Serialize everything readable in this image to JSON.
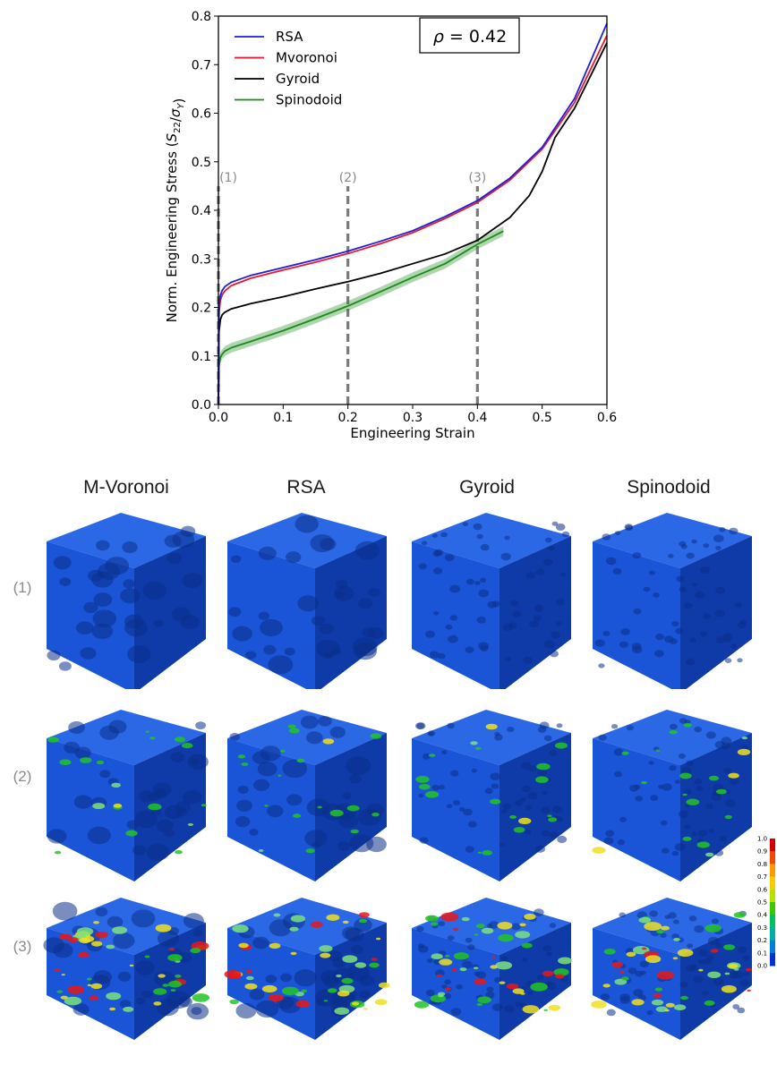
{
  "chart_data": {
    "type": "line",
    "xlabel": "Engineering Strain",
    "ylabel": "Norm. Engineering Stress (S22/σY)",
    "ylabel_parts": {
      "prefix": "Norm. Engineering Stress (",
      "s": "S",
      "s_sub": "22",
      "sigma": "σ",
      "sigma_sub": "Y",
      "suffix": ")"
    },
    "xlim": [
      0.0,
      0.6
    ],
    "ylim": [
      0.0,
      0.8
    ],
    "xticks": [
      "0.0",
      "0.1",
      "0.2",
      "0.3",
      "0.4",
      "0.5",
      "0.6"
    ],
    "yticks": [
      "0.0",
      "0.1",
      "0.2",
      "0.3",
      "0.4",
      "0.5",
      "0.6",
      "0.7",
      "0.8"
    ],
    "grid": false,
    "legend_position": "top-left",
    "annotation": {
      "symbol": "ρ",
      "text": " = 0.42"
    },
    "vlines": [
      {
        "x": 0.0,
        "label": "(1)"
      },
      {
        "x": 0.2,
        "label": "(2)"
      },
      {
        "x": 0.4,
        "label": "(3)"
      }
    ],
    "series": [
      {
        "name": "RSA",
        "color": "#1f1fd6",
        "x": [
          0.0,
          0.001,
          0.003,
          0.006,
          0.01,
          0.02,
          0.05,
          0.1,
          0.15,
          0.2,
          0.25,
          0.3,
          0.35,
          0.4,
          0.45,
          0.5,
          0.55,
          0.6
        ],
        "y": [
          0.0,
          0.2,
          0.225,
          0.235,
          0.243,
          0.252,
          0.266,
          0.282,
          0.298,
          0.316,
          0.336,
          0.358,
          0.387,
          0.42,
          0.466,
          0.53,
          0.63,
          0.785
        ]
      },
      {
        "name": "Mvoronoi",
        "color": "#e8192c",
        "x": [
          0.0,
          0.001,
          0.003,
          0.006,
          0.01,
          0.02,
          0.05,
          0.1,
          0.15,
          0.2,
          0.25,
          0.3,
          0.35,
          0.4,
          0.45,
          0.5,
          0.55,
          0.6
        ],
        "y": [
          0.0,
          0.19,
          0.215,
          0.226,
          0.234,
          0.245,
          0.26,
          0.277,
          0.293,
          0.311,
          0.331,
          0.354,
          0.383,
          0.416,
          0.462,
          0.526,
          0.622,
          0.76
        ]
      },
      {
        "name": "Gyroid",
        "color": "#000000",
        "x": [
          0.0,
          0.001,
          0.003,
          0.006,
          0.01,
          0.02,
          0.05,
          0.1,
          0.15,
          0.2,
          0.25,
          0.3,
          0.35,
          0.4,
          0.45,
          0.48,
          0.5,
          0.52,
          0.55,
          0.6
        ],
        "y": [
          0.0,
          0.15,
          0.175,
          0.185,
          0.19,
          0.197,
          0.208,
          0.222,
          0.238,
          0.253,
          0.27,
          0.29,
          0.31,
          0.338,
          0.385,
          0.43,
          0.48,
          0.55,
          0.61,
          0.745
        ]
      },
      {
        "name": "Spinodoid",
        "color": "#1a8a1a",
        "x": [
          0.0,
          0.001,
          0.003,
          0.006,
          0.01,
          0.02,
          0.05,
          0.1,
          0.15,
          0.2,
          0.25,
          0.3,
          0.35,
          0.4,
          0.44
        ],
        "y": [
          0.0,
          0.08,
          0.097,
          0.104,
          0.11,
          0.117,
          0.13,
          0.152,
          0.177,
          0.203,
          0.232,
          0.262,
          0.29,
          0.33,
          0.357
        ],
        "band": 0.01
      }
    ]
  },
  "panel": {
    "column_headers": [
      "M-Voronoi",
      "RSA",
      "Gyroid",
      "Spinodoid"
    ],
    "row_labels": [
      "(1)",
      "(2)",
      "(3)"
    ],
    "colorbar": {
      "ticks": [
        "1.0",
        "0.9",
        "0.8",
        "0.7",
        "0.6",
        "0.5",
        "0.4",
        "0.3",
        "0.2",
        "0.1",
        "0.0"
      ],
      "colors": [
        "#d40000",
        "#f04a00",
        "#ff9a00",
        "#f0d000",
        "#b8e000",
        "#3cc800",
        "#00c060",
        "#00b0a0",
        "#0080d8",
        "#0030d0",
        "#000090"
      ]
    },
    "cube_colors": {
      "base": "#1a55d8",
      "dark": "#0e3ba8",
      "light": "#2a68e6",
      "hole": "#0b2f8a"
    },
    "stress_colors": [
      "#22c422",
      "#f0e020",
      "#e81818",
      "#7ee27e"
    ]
  }
}
